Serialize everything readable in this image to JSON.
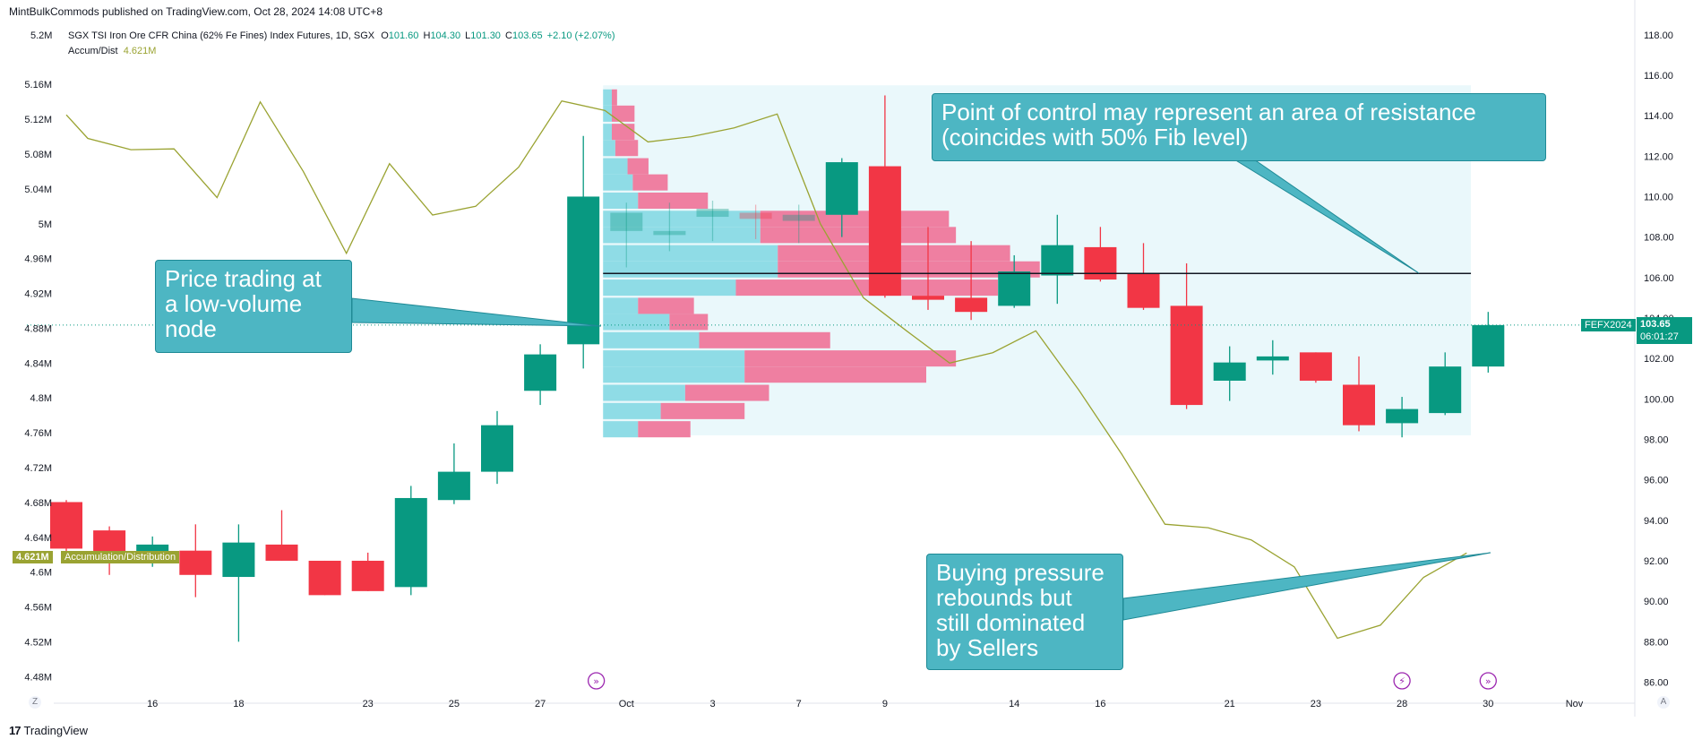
{
  "header": {
    "publisher": "MintBulkCommods published on TradingView.com, Oct 28, 2024 14:08 UTC+8",
    "scale_top": "5.2M",
    "symbol": "SGX TSI Iron Ore CFR China (62% Fe Fines) Index Futures, 1D, SGX",
    "o_label": "O",
    "o_value": "101.60",
    "h_label": "H",
    "h_value": "104.30",
    "l_label": "L",
    "l_value": "101.30",
    "c_label": "C",
    "c_value": "103.65",
    "change": "+2.10 (+2.07%)",
    "indicator_name": "Accum/Dist",
    "indicator_value": "4.621M"
  },
  "annotations": {
    "poc_callout": [
      "Point of control may represent an area of resistance",
      "(coincides with 50% Fib level)"
    ],
    "lvn_callout": [
      "Price trading at",
      "a low-volume",
      "node"
    ],
    "buying_callout": [
      "Buying pressure",
      "rebounds but",
      "still dominated",
      "by Sellers"
    ]
  },
  "badges": {
    "symbol": "FEFX2024",
    "last_price": "103.65",
    "countdown": "06:01:27",
    "ad_value": "4.621M",
    "ad_name": "Accumulation/Distribution"
  },
  "footer": {
    "logo": "TradingView",
    "z_button": "Z",
    "a_button": "A"
  },
  "colors": {
    "up": "#089981",
    "down": "#f23645",
    "ad_line": "#9aa332",
    "vp_up": "#8fdce6",
    "vp_down": "#ef7fa1",
    "vp_bg": "#eaf8fb",
    "callout": "#4db6c3",
    "callout_border": "#1f8a96",
    "poc_line": "#131722"
  },
  "chart_data": {
    "type": "candlestick",
    "title": "SGX TSI Iron Ore CFR China (62% Fe Fines) Index Futures, 1D, SGX",
    "price_axis_ticks": [
      118,
      116,
      114,
      112,
      110,
      108,
      106,
      104,
      102,
      100,
      98,
      96,
      94,
      92,
      90,
      88,
      86
    ],
    "price_axis_labels": [
      "118.00",
      "116.00",
      "114.00",
      "112.00",
      "110.00",
      "108.00",
      "106.00",
      "104.00",
      "102.00",
      "100.00",
      "98.00",
      "96.00",
      "94.00",
      "92.00",
      "90.00",
      "88.00",
      "86.00"
    ],
    "ylim_price": [
      85.8,
      118.3
    ],
    "ad_axis_labels": [
      "5.16M",
      "5.12M",
      "5.08M",
      "5.04M",
      "5M",
      "4.96M",
      "4.92M",
      "4.88M",
      "4.84M",
      "4.8M",
      "4.76M",
      "4.72M",
      "4.68M",
      "4.64M",
      "4.6M",
      "4.56M",
      "4.52M",
      "4.48M"
    ],
    "ad_axis_values": [
      5.16,
      5.12,
      5.08,
      5.04,
      5.0,
      4.96,
      4.92,
      4.88,
      4.84,
      4.8,
      4.76,
      4.72,
      4.68,
      4.64,
      4.6,
      4.56,
      4.52,
      4.48
    ],
    "ylim_ad": [
      4.469,
      5.224
    ],
    "x_ticks": [
      {
        "i": 2,
        "label": "16"
      },
      {
        "i": 4,
        "label": "18"
      },
      {
        "i": 7,
        "label": "23"
      },
      {
        "i": 9,
        "label": "25"
      },
      {
        "i": 11,
        "label": "27"
      },
      {
        "i": 13,
        "label": "Oct"
      },
      {
        "i": 15,
        "label": "3"
      },
      {
        "i": 17,
        "label": "7"
      },
      {
        "i": 19,
        "label": "9"
      },
      {
        "i": 22,
        "label": "14"
      },
      {
        "i": 24,
        "label": "16"
      },
      {
        "i": 27,
        "label": "21"
      },
      {
        "i": 29,
        "label": "23"
      },
      {
        "i": 31,
        "label": "28"
      },
      {
        "i": 33,
        "label": "30"
      },
      {
        "i": 35,
        "label": "Nov"
      }
    ],
    "candles": [
      {
        "i": 0,
        "o": 94.9,
        "h": 95.0,
        "l": 92.0,
        "c": 92.6
      },
      {
        "i": 1,
        "o": 93.5,
        "h": 93.7,
        "l": 91.3,
        "c": 92.1
      },
      {
        "i": 2,
        "o": 92.0,
        "h": 93.2,
        "l": 91.7,
        "c": 92.8
      },
      {
        "i": 3,
        "o": 92.5,
        "h": 93.8,
        "l": 90.2,
        "c": 91.3
      },
      {
        "i": 4,
        "o": 91.2,
        "h": 93.8,
        "l": 88.0,
        "c": 92.9
      },
      {
        "i": 5,
        "o": 92.8,
        "h": 94.5,
        "l": 92.0,
        "c": 92.0
      },
      {
        "i": 6,
        "o": 92.0,
        "h": 92.0,
        "l": 90.3,
        "c": 90.3
      },
      {
        "i": 7,
        "o": 92.0,
        "h": 92.4,
        "l": 90.5,
        "c": 90.5
      },
      {
        "i": 8,
        "o": 90.7,
        "h": 95.7,
        "l": 90.3,
        "c": 95.1
      },
      {
        "i": 9,
        "o": 95.0,
        "h": 97.8,
        "l": 94.8,
        "c": 96.4
      },
      {
        "i": 10,
        "o": 96.4,
        "h": 99.4,
        "l": 95.8,
        "c": 98.7
      },
      {
        "i": 11,
        "o": 100.4,
        "h": 102.7,
        "l": 99.7,
        "c": 102.2
      },
      {
        "i": 12,
        "o": 102.7,
        "h": 113.0,
        "l": 101.5,
        "c": 110.0
      },
      {
        "i": 18,
        "o": 109.1,
        "h": 111.9,
        "l": 108.0,
        "c": 111.7
      },
      {
        "i": 19,
        "o": 111.5,
        "h": 115.0,
        "l": 105.0,
        "c": 105.1
      },
      {
        "i": 20,
        "o": 105.1,
        "h": 108.5,
        "l": 104.4,
        "c": 104.9
      },
      {
        "i": 21,
        "o": 105.0,
        "h": 107.8,
        "l": 103.9,
        "c": 104.3
      },
      {
        "i": 22,
        "o": 104.6,
        "h": 107.1,
        "l": 104.5,
        "c": 106.3
      },
      {
        "i": 23,
        "o": 106.1,
        "h": 109.1,
        "l": 104.7,
        "c": 107.6
      },
      {
        "i": 24,
        "o": 107.5,
        "h": 108.5,
        "l": 105.8,
        "c": 105.9
      },
      {
        "i": 25,
        "o": 106.2,
        "h": 107.7,
        "l": 104.4,
        "c": 104.5
      },
      {
        "i": 26,
        "o": 104.6,
        "h": 106.7,
        "l": 99.5,
        "c": 99.7
      },
      {
        "i": 27,
        "o": 100.9,
        "h": 102.6,
        "l": 99.9,
        "c": 101.8
      },
      {
        "i": 28,
        "o": 101.9,
        "h": 102.9,
        "l": 101.2,
        "c": 102.1
      },
      {
        "i": 29,
        "o": 102.3,
        "h": 102.3,
        "l": 100.8,
        "c": 100.9
      },
      {
        "i": 30,
        "o": 100.7,
        "h": 102.1,
        "l": 98.4,
        "c": 98.7
      },
      {
        "i": 31,
        "o": 98.8,
        "h": 100.1,
        "l": 98.1,
        "c": 99.5
      },
      {
        "i": 32,
        "o": 99.3,
        "h": 102.3,
        "l": 99.2,
        "c": 101.6
      },
      {
        "i": 33,
        "o": 101.6,
        "h": 104.3,
        "l": 101.3,
        "c": 103.65
      }
    ],
    "hidden_candles": [
      {
        "i": 13,
        "o": 108.3,
        "h": 109.7,
        "l": 106.5,
        "c": 109.2
      },
      {
        "i": 14,
        "o": 108.1,
        "h": 109.7,
        "l": 107.3,
        "c": 108.3
      },
      {
        "i": 15,
        "o": 109.0,
        "h": 109.8,
        "l": 107.8,
        "c": 109.4
      },
      {
        "i": 16,
        "o": 109.2,
        "h": 109.6,
        "l": 107.9,
        "c": 108.9
      },
      {
        "i": 17,
        "o": 108.8,
        "h": 109.6,
        "l": 107.7,
        "c": 109.1
      }
    ],
    "ad_line": [
      {
        "i": 0,
        "v": 5.125
      },
      {
        "i": 0.5,
        "v": 5.098
      },
      {
        "i": 1.5,
        "v": 5.085
      },
      {
        "i": 2.5,
        "v": 5.086
      },
      {
        "i": 3.5,
        "v": 5.03
      },
      {
        "i": 4.5,
        "v": 5.14
      },
      {
        "i": 5.5,
        "v": 5.06
      },
      {
        "i": 6.5,
        "v": 4.966
      },
      {
        "i": 7.5,
        "v": 5.069
      },
      {
        "i": 8.5,
        "v": 5.01
      },
      {
        "i": 9.5,
        "v": 5.02
      },
      {
        "i": 10.5,
        "v": 5.065
      },
      {
        "i": 11.5,
        "v": 5.141
      },
      {
        "i": 12.5,
        "v": 5.13
      },
      {
        "i": 13.5,
        "v": 5.094
      },
      {
        "i": 14.5,
        "v": 5.1
      },
      {
        "i": 15.5,
        "v": 5.11
      },
      {
        "i": 16.5,
        "v": 5.126
      },
      {
        "i": 17.5,
        "v": 5.0
      },
      {
        "i": 18.5,
        "v": 4.915
      },
      {
        "i": 19.5,
        "v": 4.877
      },
      {
        "i": 20.5,
        "v": 4.84
      },
      {
        "i": 21.5,
        "v": 4.852
      },
      {
        "i": 22.5,
        "v": 4.877
      },
      {
        "i": 23.5,
        "v": 4.809
      },
      {
        "i": 24.5,
        "v": 4.735
      },
      {
        "i": 25.5,
        "v": 4.655
      },
      {
        "i": 26.5,
        "v": 4.651
      },
      {
        "i": 27.5,
        "v": 4.637
      },
      {
        "i": 28.5,
        "v": 4.606
      },
      {
        "i": 29.5,
        "v": 4.524
      },
      {
        "i": 30.5,
        "v": 4.539
      },
      {
        "i": 31.5,
        "v": 4.594
      },
      {
        "i": 32.5,
        "v": 4.622
      }
    ],
    "volume_profile": {
      "start_i": 12.5,
      "end_i": 32.6,
      "price_low": 98.2,
      "price_high": 115.5,
      "rows": [
        {
          "p": 98.5,
          "up": 2.0,
          "down": 3.0
        },
        {
          "p": 99.4,
          "up": 3.3,
          "down": 4.8
        },
        {
          "p": 100.3,
          "up": 4.7,
          "down": 4.8
        },
        {
          "p": 101.2,
          "up": 8.1,
          "down": 10.4
        },
        {
          "p": 102.0,
          "up": 8.1,
          "down": 12.1
        },
        {
          "p": 102.9,
          "up": 5.5,
          "down": 7.5
        },
        {
          "p": 103.8,
          "up": 3.8,
          "down": 2.2
        },
        {
          "p": 104.6,
          "up": 2.0,
          "down": 3.2
        },
        {
          "p": 105.5,
          "up": 7.6,
          "down": 15.0
        },
        {
          "p": 106.4,
          "up": 10.0,
          "down": 15.0
        },
        {
          "p": 107.2,
          "up": 10.0,
          "down": 13.3
        },
        {
          "p": 108.1,
          "up": 9.0,
          "down": 11.2
        },
        {
          "p": 108.9,
          "up": 9.0,
          "down": 10.8
        },
        {
          "p": 109.8,
          "up": 2.0,
          "down": 4.0
        },
        {
          "p": 110.7,
          "up": 1.7,
          "down": 2.0
        },
        {
          "p": 111.5,
          "up": 1.4,
          "down": 1.2
        },
        {
          "p": 112.4,
          "up": 0.7,
          "down": 1.3
        },
        {
          "p": 113.2,
          "up": 0.5,
          "down": 1.3
        },
        {
          "p": 114.1,
          "up": 0.5,
          "down": 1.3
        },
        {
          "p": 114.9,
          "up": 0.5,
          "down": 0.3
        }
      ],
      "poc_price": 106.2
    },
    "event_markers": [
      {
        "i": 12.3,
        "type": "dividend"
      },
      {
        "i": 31,
        "type": "split"
      },
      {
        "i": 33,
        "type": "dividend"
      }
    ]
  }
}
